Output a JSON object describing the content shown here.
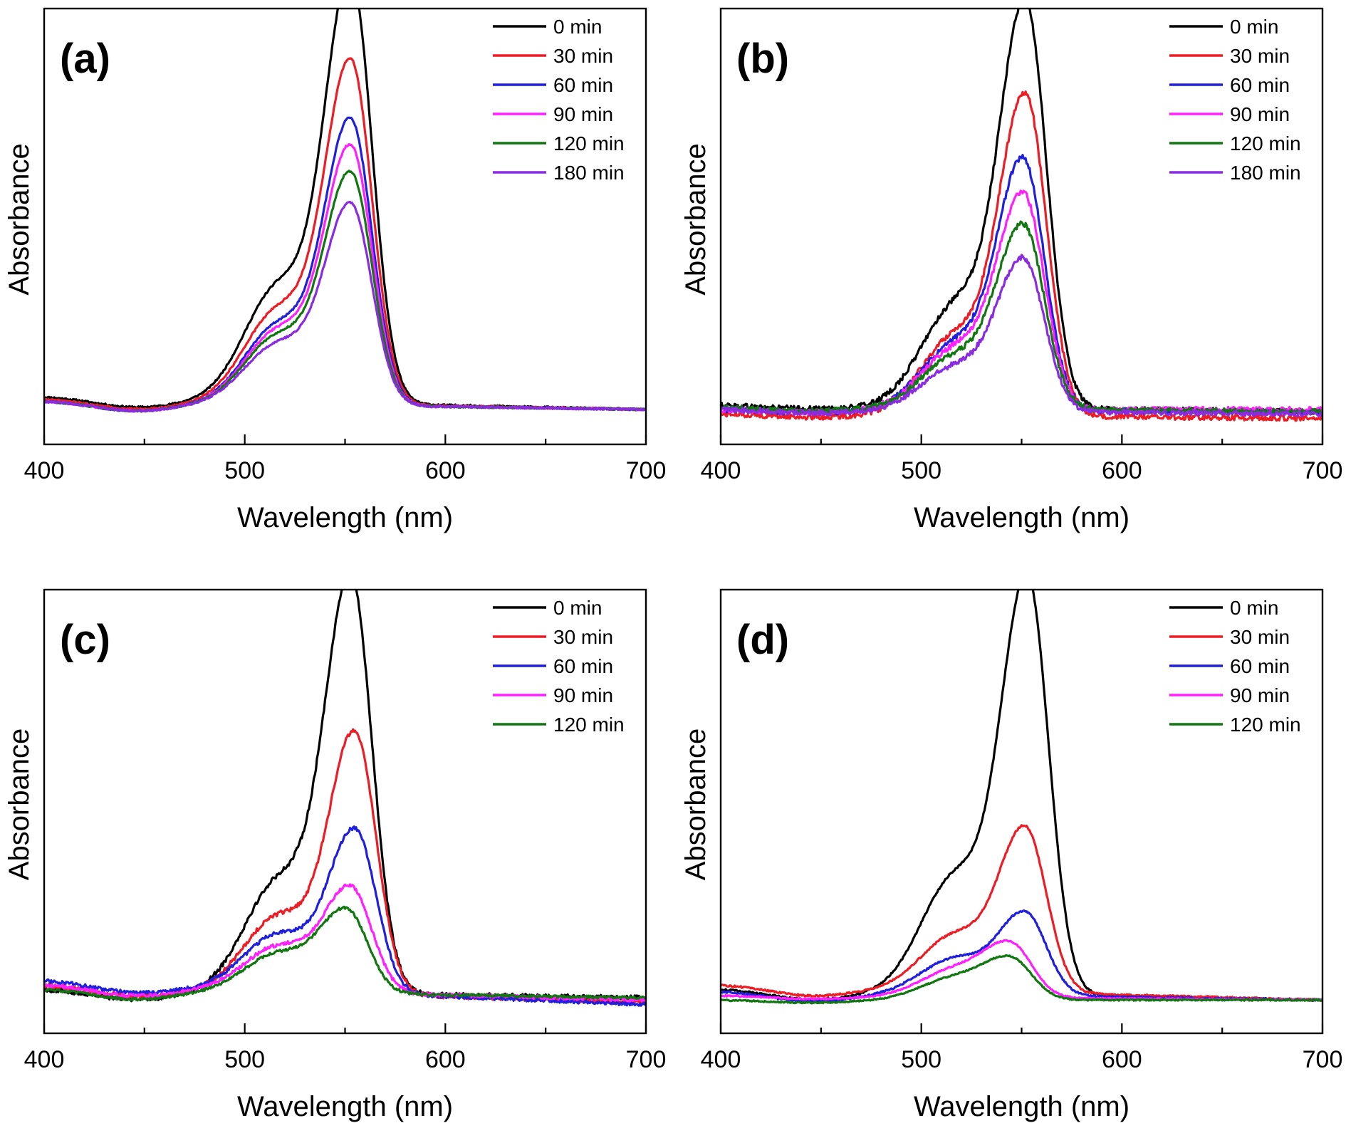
{
  "colors": {
    "0 min": "#000000",
    "30 min": "#ee1c25",
    "60 min": "#1f1fdd",
    "90 min": "#ff1fff",
    "120 min": "#117711",
    "180 min": "#8a2be2"
  },
  "chart_data": [
    {
      "type": "line",
      "panel_label": "(a)",
      "xlabel": "Wavelength (nm)",
      "ylabel": "Absorbance",
      "xlim": [
        400,
        700
      ],
      "xticks": [
        400,
        500,
        600,
        700
      ],
      "ylim": [
        0,
        1.0
      ],
      "y_tick_labels_shown": false,
      "legend_position": "top-right",
      "series": [
        {
          "name": "0 min",
          "peak_x": 553,
          "peak_y": 0.96,
          "shoulder_y": 0.42,
          "baseline_left": 0.11,
          "baseline_right": 0.08,
          "noise": 0.002,
          "color_key": "0 min"
        },
        {
          "name": "30 min",
          "peak_x": 553,
          "peak_y": 0.77,
          "shoulder_y": 0.34,
          "baseline_left": 0.105,
          "baseline_right": 0.08,
          "noise": 0.002,
          "color_key": "30 min"
        },
        {
          "name": "60 min",
          "peak_x": 553,
          "peak_y": 0.64,
          "shoulder_y": 0.29,
          "baseline_left": 0.1,
          "baseline_right": 0.08,
          "noise": 0.002,
          "color_key": "60 min"
        },
        {
          "name": "90 min",
          "peak_x": 553,
          "peak_y": 0.58,
          "shoulder_y": 0.27,
          "baseline_left": 0.1,
          "baseline_right": 0.08,
          "noise": 0.002,
          "color_key": "90 min"
        },
        {
          "name": "120 min",
          "peak_x": 553,
          "peak_y": 0.52,
          "shoulder_y": 0.25,
          "baseline_left": 0.1,
          "baseline_right": 0.08,
          "noise": 0.002,
          "color_key": "120 min"
        },
        {
          "name": "180 min",
          "peak_x": 553,
          "peak_y": 0.45,
          "shoulder_y": 0.22,
          "baseline_left": 0.1,
          "baseline_right": 0.08,
          "noise": 0.002,
          "color_key": "180 min"
        }
      ]
    },
    {
      "type": "line",
      "panel_label": "(b)",
      "xlabel": "Wavelength (nm)",
      "ylabel": "Absorbance",
      "xlim": [
        400,
        700
      ],
      "xticks": [
        400,
        500,
        600,
        700
      ],
      "ylim": [
        0,
        1.0
      ],
      "y_tick_labels_shown": false,
      "legend_position": "top-right",
      "series": [
        {
          "name": "0 min",
          "peak_x": 552,
          "peak_y": 0.91,
          "shoulder_y": 0.37,
          "baseline_left": 0.09,
          "baseline_right": 0.075,
          "noise": 0.006,
          "color_key": "0 min"
        },
        {
          "name": "30 min",
          "peak_x": 552,
          "peak_y": 0.72,
          "shoulder_y": 0.29,
          "baseline_left": 0.07,
          "baseline_right": 0.06,
          "noise": 0.006,
          "color_key": "30 min"
        },
        {
          "name": "60 min",
          "peak_x": 551,
          "peak_y": 0.56,
          "shoulder_y": 0.24,
          "baseline_left": 0.08,
          "baseline_right": 0.075,
          "noise": 0.006,
          "color_key": "60 min"
        },
        {
          "name": "90 min",
          "peak_x": 551,
          "peak_y": 0.48,
          "shoulder_y": 0.22,
          "baseline_left": 0.08,
          "baseline_right": 0.08,
          "noise": 0.006,
          "color_key": "90 min"
        },
        {
          "name": "120 min",
          "peak_x": 551,
          "peak_y": 0.41,
          "shoulder_y": 0.19,
          "baseline_left": 0.085,
          "baseline_right": 0.075,
          "noise": 0.006,
          "color_key": "120 min"
        },
        {
          "name": "180 min",
          "peak_x": 551,
          "peak_y": 0.34,
          "shoulder_y": 0.16,
          "baseline_left": 0.08,
          "baseline_right": 0.07,
          "noise": 0.006,
          "color_key": "180 min"
        }
      ]
    },
    {
      "type": "line",
      "panel_label": "(c)",
      "xlabel": "Wavelength (nm)",
      "ylabel": "Absorbance",
      "xlim": [
        400,
        700
      ],
      "xticks": [
        400,
        500,
        600,
        700
      ],
      "ylim": [
        0,
        1.0
      ],
      "y_tick_labels_shown": false,
      "legend_position": "top-right",
      "series": [
        {
          "name": "0 min",
          "peak_x": 553,
          "peak_y": 0.92,
          "shoulder_y": 0.4,
          "baseline_left": 0.1,
          "baseline_right": 0.08,
          "noise": 0.005,
          "color_key": "0 min"
        },
        {
          "name": "30 min",
          "peak_x": 555,
          "peak_y": 0.58,
          "shoulder_y": 0.27,
          "baseline_left": 0.11,
          "baseline_right": 0.07,
          "noise": 0.005,
          "color_key": "30 min"
        },
        {
          "name": "60 min",
          "peak_x": 555,
          "peak_y": 0.36,
          "shoulder_y": 0.2,
          "baseline_left": 0.12,
          "baseline_right": 0.065,
          "noise": 0.004,
          "color_key": "60 min"
        },
        {
          "name": "90 min",
          "peak_x": 553,
          "peak_y": 0.23,
          "shoulder_y": 0.16,
          "baseline_left": 0.11,
          "baseline_right": 0.075,
          "noise": 0.004,
          "color_key": "90 min"
        },
        {
          "name": "120 min",
          "peak_x": 551,
          "peak_y": 0.18,
          "shoulder_y": 0.14,
          "baseline_left": 0.1,
          "baseline_right": 0.08,
          "noise": 0.003,
          "color_key": "120 min"
        }
      ]
    },
    {
      "type": "line",
      "panel_label": "(d)",
      "xlabel": "Wavelength (nm)",
      "ylabel": "Absorbance",
      "xlim": [
        400,
        700
      ],
      "xticks": [
        400,
        500,
        600,
        700
      ],
      "ylim": [
        0,
        1.0
      ],
      "y_tick_labels_shown": false,
      "legend_position": "top-right",
      "series": [
        {
          "name": "0 min",
          "peak_x": 553,
          "peak_y": 0.92,
          "shoulder_y": 0.42,
          "baseline_left": 0.1,
          "baseline_right": 0.075,
          "noise": 0.002,
          "color_key": "0 min"
        },
        {
          "name": "30 min",
          "peak_x": 552,
          "peak_y": 0.36,
          "shoulder_y": 0.2,
          "baseline_left": 0.11,
          "baseline_right": 0.075,
          "noise": 0.002,
          "color_key": "30 min"
        },
        {
          "name": "60 min",
          "peak_x": 552,
          "peak_y": 0.18,
          "shoulder_y": 0.13,
          "baseline_left": 0.095,
          "baseline_right": 0.075,
          "noise": 0.002,
          "color_key": "60 min"
        },
        {
          "name": "90 min",
          "peak_x": 545,
          "peak_y": 0.11,
          "shoulder_y": 0.1,
          "baseline_left": 0.085,
          "baseline_right": 0.075,
          "noise": 0.0015,
          "color_key": "90 min"
        },
        {
          "name": "120 min",
          "peak_x": 545,
          "peak_y": 0.085,
          "shoulder_y": 0.08,
          "baseline_left": 0.075,
          "baseline_right": 0.075,
          "noise": 0.0015,
          "color_key": "120 min"
        }
      ]
    }
  ]
}
